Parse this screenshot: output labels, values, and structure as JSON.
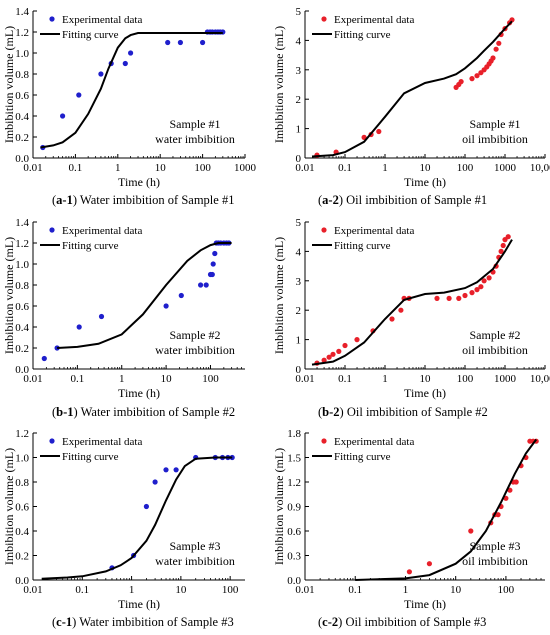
{
  "figure": {
    "captions": [
      {
        "id": "a-1",
        "text": " Water imbibition of Sample #1"
      },
      {
        "id": "a-2",
        "text": " Oil imbibition of Sample #1"
      },
      {
        "id": "b-1",
        "text": " Water imbibition of Sample #2"
      },
      {
        "id": "b-2",
        "text": " Oil imbibition of Sample #2"
      },
      {
        "id": "c-1",
        "text": " Water imbibition of Sample #3"
      },
      {
        "id": "c-2",
        "text": " Oil imbibition of Sample #3"
      }
    ]
  },
  "chart_data": [
    {
      "id": "a-1",
      "type": "scatter",
      "xscale": "log",
      "xlabel": "Time (h)",
      "ylabel": "Imbibition volume (mL)",
      "xlim": [
        0.01,
        1000
      ],
      "ylim": [
        0,
        1.4
      ],
      "xticks": [
        0.01,
        0.1,
        1,
        10,
        100,
        1000
      ],
      "xticklabels": [
        "0.01",
        "0.1",
        "1",
        "10",
        "100",
        "1000"
      ],
      "yticks": [
        0,
        0.2,
        0.4,
        0.6,
        0.8,
        1.0,
        1.2,
        1.4
      ],
      "yticklabels": [
        "0.0",
        "0.2",
        "0.4",
        "0.6",
        "0.8",
        "1.0",
        "1.2",
        "1.4"
      ],
      "legend": {
        "position": "top-left",
        "entries": [
          "Experimental data",
          "Fitting curve"
        ]
      },
      "annotation": [
        "Sample #1",
        "water imbibition"
      ],
      "series": [
        {
          "name": "Experimental data",
          "kind": "scatter",
          "color": "#1f1fcc",
          "x": [
            0.017,
            0.05,
            0.12,
            0.4,
            0.7,
            1.5,
            2,
            15,
            30,
            100,
            130,
            150,
            170,
            200,
            230,
            260,
            300
          ],
          "y": [
            0.1,
            0.4,
            0.6,
            0.8,
            0.9,
            0.9,
            1.0,
            1.1,
            1.1,
            1.1,
            1.2,
            1.2,
            1.2,
            1.2,
            1.2,
            1.2,
            1.2
          ]
        },
        {
          "name": "Fitting curve",
          "kind": "line",
          "color": "#000000",
          "x": [
            0.015,
            0.03,
            0.05,
            0.1,
            0.2,
            0.4,
            0.6,
            1,
            1.5,
            2,
            3,
            5,
            10,
            20,
            50,
            100,
            300
          ],
          "y": [
            0.1,
            0.12,
            0.15,
            0.24,
            0.42,
            0.66,
            0.85,
            1.05,
            1.14,
            1.17,
            1.19,
            1.19,
            1.19,
            1.19,
            1.19,
            1.19,
            1.19
          ]
        }
      ]
    },
    {
      "id": "a-2",
      "type": "scatter",
      "xscale": "log",
      "xlabel": "Time (h)",
      "ylabel": "Imbibition volume (mL)",
      "xlim": [
        0.01,
        10000
      ],
      "ylim": [
        0,
        5
      ],
      "xticks": [
        0.01,
        0.1,
        1,
        10,
        100,
        1000,
        10000
      ],
      "xticklabels": [
        "0.01",
        "0.1",
        "1",
        "10",
        "100",
        "1000",
        "10,000"
      ],
      "yticks": [
        0,
        1,
        2,
        3,
        4,
        5
      ],
      "yticklabels": [
        "0",
        "1",
        "2",
        "3",
        "4",
        "5"
      ],
      "legend": {
        "position": "top-left",
        "entries": [
          "Experimental data",
          "Fitting curve"
        ]
      },
      "annotation": [
        "Sample #1",
        "oil imbibition"
      ],
      "series": [
        {
          "name": "Experimental data",
          "kind": "scatter",
          "color": "#e8202a",
          "x": [
            0.02,
            0.06,
            0.3,
            0.45,
            0.7,
            60,
            70,
            80,
            150,
            200,
            250,
            300,
            350,
            400,
            450,
            500,
            600,
            700,
            800,
            1000,
            1300,
            1500
          ],
          "y": [
            0.1,
            0.2,
            0.7,
            0.8,
            0.9,
            2.4,
            2.5,
            2.6,
            2.7,
            2.8,
            2.9,
            3.0,
            3.1,
            3.2,
            3.3,
            3.4,
            3.7,
            3.9,
            4.2,
            4.4,
            4.6,
            4.7
          ]
        },
        {
          "name": "Fitting curve",
          "kind": "line",
          "color": "#000000",
          "x": [
            0.015,
            0.05,
            0.1,
            0.3,
            1,
            3,
            10,
            30,
            60,
            100,
            200,
            300,
            500,
            1000,
            1500
          ],
          "y": [
            0.05,
            0.1,
            0.2,
            0.55,
            1.4,
            2.2,
            2.55,
            2.7,
            2.85,
            3.05,
            3.4,
            3.65,
            3.95,
            4.4,
            4.65
          ]
        }
      ]
    },
    {
      "id": "b-1",
      "type": "scatter",
      "xscale": "log",
      "xlabel": "Time (h)",
      "ylabel": "Imbibition volume (mL)",
      "xlim": [
        0.01,
        600
      ],
      "ylim": [
        0,
        1.4
      ],
      "xticks": [
        0.01,
        0.1,
        1,
        10,
        100
      ],
      "xticklabels": [
        "0.01",
        "0.1",
        "1",
        "10",
        "100"
      ],
      "yticks": [
        0,
        0.2,
        0.4,
        0.6,
        0.8,
        1.0,
        1.2,
        1.4
      ],
      "yticklabels": [
        "0.0",
        "0.2",
        "0.4",
        "0.6",
        "0.8",
        "1.0",
        "1.2",
        "1.4"
      ],
      "legend": {
        "position": "top-left",
        "entries": [
          "Experimental data",
          "Fitting curve"
        ]
      },
      "annotation": [
        "Sample #2",
        "water imbibition"
      ],
      "series": [
        {
          "name": "Experimental data",
          "kind": "scatter",
          "color": "#1f1fcc",
          "x": [
            0.018,
            0.035,
            0.11,
            0.35,
            10,
            22,
            60,
            80,
            100,
            110,
            115,
            125,
            135,
            150,
            170,
            200,
            230,
            260
          ],
          "y": [
            0.1,
            0.2,
            0.4,
            0.5,
            0.6,
            0.7,
            0.8,
            0.8,
            0.9,
            0.9,
            1.0,
            1.1,
            1.2,
            1.2,
            1.2,
            1.2,
            1.2,
            1.2
          ]
        },
        {
          "name": "Fitting curve",
          "kind": "line",
          "color": "#000000",
          "x": [
            0.035,
            0.1,
            0.3,
            1,
            3,
            10,
            30,
            60,
            100,
            150,
            300
          ],
          "y": [
            0.2,
            0.21,
            0.24,
            0.33,
            0.52,
            0.8,
            1.03,
            1.13,
            1.18,
            1.2,
            1.2
          ]
        }
      ]
    },
    {
      "id": "b-2",
      "type": "scatter",
      "xscale": "log",
      "xlabel": "Time (h)",
      "ylabel": "Imbibition volume (mL)",
      "xlim": [
        0.01,
        10000
      ],
      "ylim": [
        0,
        5
      ],
      "xticks": [
        0.01,
        0.1,
        1,
        10,
        100,
        1000,
        10000
      ],
      "xticklabels": [
        "0.01",
        "0.1",
        "1",
        "10",
        "100",
        "1000",
        "10,000"
      ],
      "yticks": [
        0,
        1,
        2,
        3,
        4,
        5
      ],
      "yticklabels": [
        "0",
        "1",
        "2",
        "3",
        "4",
        "5"
      ],
      "legend": {
        "position": "top-left",
        "entries": [
          "Experimental data",
          "Fitting curve"
        ]
      },
      "annotation": [
        "Sample #2",
        "oil imbibition"
      ],
      "series": [
        {
          "name": "Experimental data",
          "kind": "scatter",
          "color": "#e8202a",
          "x": [
            0.02,
            0.03,
            0.04,
            0.05,
            0.07,
            0.1,
            0.2,
            0.5,
            1.5,
            2.5,
            3,
            4,
            20,
            40,
            70,
            100,
            150,
            200,
            250,
            300,
            400,
            500,
            600,
            700,
            800,
            900,
            1000,
            1200
          ],
          "y": [
            0.2,
            0.3,
            0.4,
            0.5,
            0.6,
            0.8,
            1.0,
            1.3,
            1.7,
            2.0,
            2.4,
            2.4,
            2.4,
            2.4,
            2.4,
            2.5,
            2.6,
            2.7,
            2.8,
            3.0,
            3.1,
            3.3,
            3.5,
            3.8,
            4.0,
            4.2,
            4.4,
            4.5
          ]
        },
        {
          "name": "Fitting curve",
          "kind": "line",
          "color": "#000000",
          "x": [
            0.015,
            0.05,
            0.1,
            0.3,
            1,
            3,
            10,
            30,
            100,
            200,
            500,
            1000,
            1500
          ],
          "y": [
            0.15,
            0.25,
            0.45,
            0.9,
            1.7,
            2.35,
            2.55,
            2.6,
            2.75,
            2.95,
            3.4,
            4.0,
            4.4
          ]
        }
      ]
    },
    {
      "id": "c-1",
      "type": "scatter",
      "xscale": "log",
      "xlabel": "Time (h)",
      "ylabel": "Imbibition volume (mL)",
      "xlim": [
        0.01,
        200
      ],
      "ylim": [
        0,
        1.2
      ],
      "xticks": [
        0.01,
        0.1,
        1,
        10,
        100
      ],
      "xticklabels": [
        "0.01",
        "0.1",
        "1",
        "10",
        "100"
      ],
      "yticks": [
        0,
        0.2,
        0.4,
        0.6,
        0.8,
        1.0,
        1.2
      ],
      "yticklabels": [
        "0.0",
        "0.2",
        "0.4",
        "0.6",
        "0.8",
        "1.0",
        "1.2"
      ],
      "legend": {
        "position": "top-left",
        "entries": [
          "Experimental data",
          "Fitting curve"
        ]
      },
      "annotation": [
        "Sample #3",
        "water imbibition"
      ],
      "series": [
        {
          "name": "Experimental data",
          "kind": "scatter",
          "color": "#1f1fcc",
          "x": [
            0.4,
            1.1,
            2,
            3,
            5,
            8,
            20,
            50,
            70,
            90,
            110
          ],
          "y": [
            0.1,
            0.2,
            0.6,
            0.8,
            0.9,
            0.9,
            1.0,
            1.0,
            1.0,
            1.0,
            1.0
          ]
        },
        {
          "name": "Fitting curve",
          "kind": "line",
          "color": "#000000",
          "x": [
            0.015,
            0.05,
            0.1,
            0.3,
            0.6,
            1,
            2,
            3,
            5,
            8,
            12,
            20,
            50,
            110
          ],
          "y": [
            0.01,
            0.02,
            0.03,
            0.07,
            0.12,
            0.18,
            0.32,
            0.45,
            0.65,
            0.82,
            0.93,
            0.99,
            1.0,
            1.0
          ]
        }
      ]
    },
    {
      "id": "c-2",
      "type": "scatter",
      "xscale": "log",
      "xlabel": "Time (h)",
      "ylabel": "Imbibition volume (mL)",
      "xlim": [
        0.01,
        600
      ],
      "ylim": [
        0,
        1.8
      ],
      "xticks": [
        0.01,
        0.1,
        1,
        10,
        100
      ],
      "xticklabels": [
        "0.01",
        "0.1",
        "1",
        "10",
        "100"
      ],
      "yticks": [
        0,
        0.3,
        0.6,
        0.9,
        1.2,
        1.5,
        1.8
      ],
      "yticklabels": [
        "0.0",
        "0.3",
        "0.6",
        "0.9",
        "1.2",
        "1.5",
        "1.8"
      ],
      "legend": {
        "position": "top-left",
        "entries": [
          "Experimental data",
          "Fitting curve"
        ]
      },
      "annotation": [
        "Sample #3",
        "oil imbibition"
      ],
      "series": [
        {
          "name": "Experimental data",
          "kind": "scatter",
          "color": "#e8202a",
          "x": [
            1.2,
            3,
            20,
            50,
            60,
            70,
            80,
            100,
            120,
            140,
            160,
            200,
            250,
            300,
            350,
            400
          ],
          "y": [
            0.1,
            0.2,
            0.6,
            0.7,
            0.8,
            0.8,
            0.9,
            1.0,
            1.1,
            1.2,
            1.2,
            1.4,
            1.5,
            1.7,
            1.7,
            1.7
          ]
        },
        {
          "name": "Fitting curve",
          "kind": "line",
          "color": "#000000",
          "x": [
            0.1,
            1,
            3,
            10,
            20,
            40,
            80,
            150,
            250,
            400
          ],
          "y": [
            0.0,
            0.02,
            0.06,
            0.2,
            0.35,
            0.6,
            0.95,
            1.3,
            1.55,
            1.72
          ]
        }
      ]
    }
  ]
}
